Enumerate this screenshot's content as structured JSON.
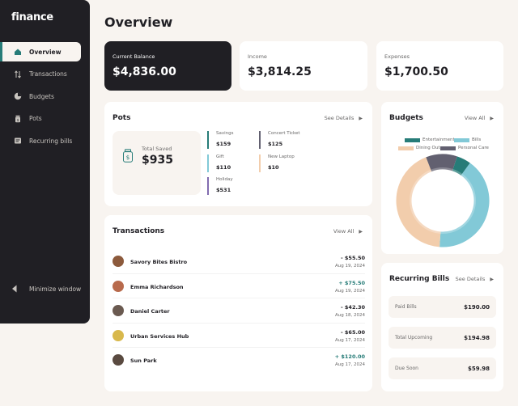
{
  "app": {
    "logo": "finance"
  },
  "sidebar": {
    "items": [
      {
        "label": "Overview",
        "icon": "home-icon",
        "active": true
      },
      {
        "label": "Transactions",
        "icon": "arrows-updown-icon",
        "active": false
      },
      {
        "label": "Budgets",
        "icon": "pie-chart-icon",
        "active": false
      },
      {
        "label": "Pots",
        "icon": "jar-icon",
        "active": false
      },
      {
        "label": "Recurring bills",
        "icon": "receipt-icon",
        "active": false
      }
    ],
    "minimize_label": "Minimize window"
  },
  "page": {
    "title": "Overview"
  },
  "balances": {
    "current": {
      "label": "Current Balance",
      "value": "$4,836.00"
    },
    "income": {
      "label": "Income",
      "value": "$3,814.25"
    },
    "expenses": {
      "label": "Expenses",
      "value": "$1,700.50"
    }
  },
  "pots": {
    "title": "Pots",
    "link": "See Details",
    "total_label": "Total Saved",
    "total_value": "$935",
    "items": [
      {
        "name": "Savings",
        "amount": "$159",
        "color": "#277c78"
      },
      {
        "name": "Concert Ticket",
        "amount": "$125",
        "color": "#626070"
      },
      {
        "name": "Gift",
        "amount": "$110",
        "color": "#82c9d7"
      },
      {
        "name": "New Laptop",
        "amount": "$10",
        "color": "#f2cdac"
      },
      {
        "name": "Holiday",
        "amount": "$531",
        "color": "#826cb0"
      }
    ]
  },
  "transactions": {
    "title": "Transactions",
    "link": "View All",
    "items": [
      {
        "name": "Savory Bites Bistro",
        "amount": "- $55.50",
        "date": "Aug 19, 2024",
        "positive": false,
        "avatar_color": "#8c5a3c"
      },
      {
        "name": "Emma Richardson",
        "amount": "+ $75.50",
        "date": "Aug 19, 2024",
        "positive": true,
        "avatar_color": "#b86a4c"
      },
      {
        "name": "Daniel Carter",
        "amount": "- $42.30",
        "date": "Aug 18, 2024",
        "positive": false,
        "avatar_color": "#6a5a50"
      },
      {
        "name": "Urban Services Hub",
        "amount": "- $65.00",
        "date": "Aug 17, 2024",
        "positive": false,
        "avatar_color": "#d8b84c"
      },
      {
        "name": "Sun Park",
        "amount": "+ $120.00",
        "date": "Aug 17, 2024",
        "positive": true,
        "avatar_color": "#5a4a40"
      }
    ]
  },
  "budgets": {
    "title": "Budgets",
    "link": "View All",
    "legend": [
      {
        "name": "Entertainment",
        "color": "#277c78"
      },
      {
        "name": "Bills",
        "color": "#82c9d7"
      },
      {
        "name": "Dining Out",
        "color": "#f2cdac"
      },
      {
        "name": "Personal Care",
        "color": "#626070"
      }
    ]
  },
  "chart_data": {
    "type": "pie",
    "categories": [
      "Entertainment",
      "Bills",
      "Dining Out",
      "Personal Care"
    ],
    "values": [
      5,
      41,
      43,
      11
    ],
    "colors": [
      "#277c78",
      "#82c9d7",
      "#f2cdac",
      "#626070"
    ],
    "title": "",
    "donut": true
  },
  "bills": {
    "title": "Recurring Bills",
    "link": "See Details",
    "items": [
      {
        "label": "Paid Bills",
        "value": "$190.00",
        "color": "#277c78"
      },
      {
        "label": "Total Upcoming",
        "value": "$194.98",
        "color": "#f2cdac"
      },
      {
        "label": "Due Soon",
        "value": "$59.98",
        "color": "#82c9d7"
      }
    ]
  }
}
